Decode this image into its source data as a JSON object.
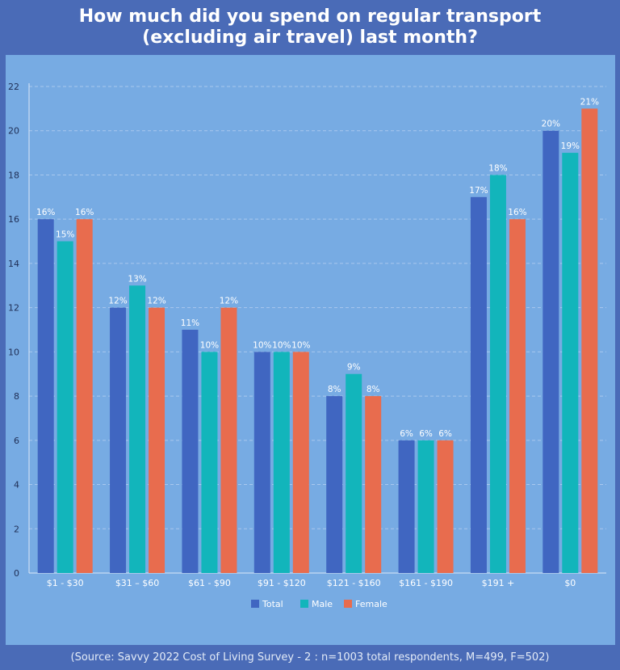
{
  "title_line1": "How much did you spend on regular transport",
  "title_line2": "(excluding air travel) last month?",
  "source": "(Source: Savvy 2022 Cost of Living Survey - 2 : n=1003 total respondents, M=499, F=502)",
  "chart_data": {
    "type": "bar",
    "title": "How much did you spend on regular transport (excluding air travel) last month?",
    "xlabel": "",
    "ylabel": "",
    "ylim": [
      0,
      22
    ],
    "yticks": [
      0,
      2,
      4,
      6,
      8,
      10,
      12,
      14,
      16,
      18,
      20,
      22
    ],
    "grid": true,
    "legend": "bottom",
    "categories": [
      "$1 - $30",
      "$31 – $60",
      "$61 - $90",
      "$91 - $120",
      "$121 - $160",
      "$161 - $190",
      "$191 +",
      "$0"
    ],
    "series": [
      {
        "name": "Total",
        "color": "#4066c1",
        "values": [
          16,
          12,
          11,
          10,
          8,
          6,
          17,
          20
        ],
        "labels": [
          "16%",
          "12%",
          "11%",
          "10%",
          "8%",
          "6%",
          "17%",
          "20%"
        ]
      },
      {
        "name": "Male",
        "color": "#12b5bb",
        "values": [
          15,
          13,
          10,
          10,
          9,
          6,
          18,
          19
        ],
        "labels": [
          "15%",
          "13%",
          "10%",
          "10%",
          "9%",
          "6%",
          "18%",
          "19%"
        ]
      },
      {
        "name": "Female",
        "color": "#e86c4e",
        "values": [
          16,
          12,
          12,
          10,
          8,
          6,
          16,
          21
        ],
        "labels": [
          "16%",
          "12%",
          "12%",
          "10%",
          "8%",
          "6%",
          "16%",
          "21%"
        ]
      }
    ]
  }
}
